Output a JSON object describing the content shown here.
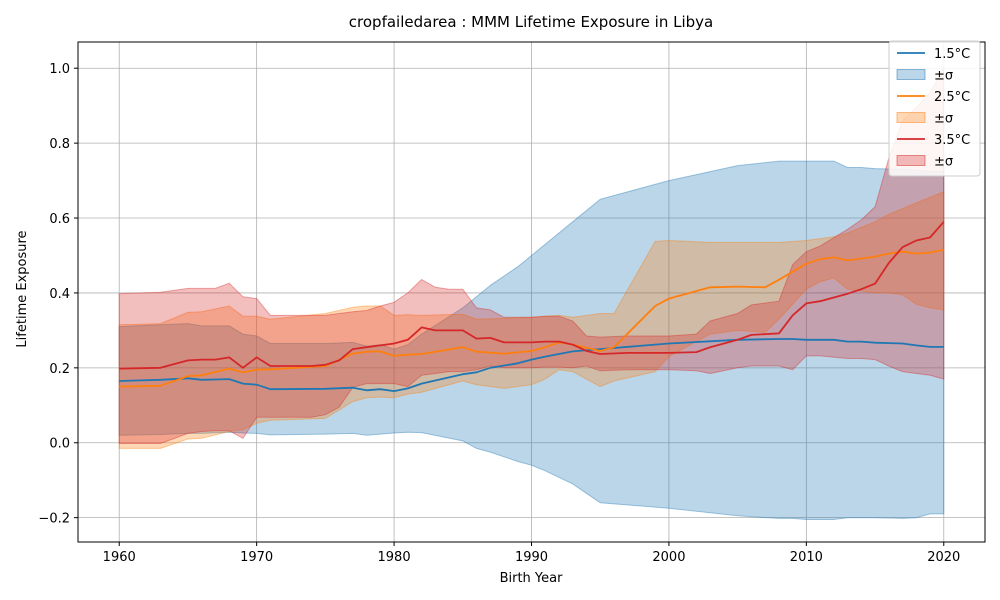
{
  "chart_data": {
    "type": "area",
    "title": "cropfailedarea : MMM Lifetime Exposure in Libya",
    "xlabel": "Birth Year",
    "ylabel": "Lifetime Exposure",
    "xlim": [
      1957,
      2023
    ],
    "ylim": [
      -0.265,
      1.07
    ],
    "xticks": [
      1960,
      1970,
      1980,
      1990,
      2000,
      2010,
      2020
    ],
    "yticks": [
      -0.2,
      0.0,
      0.2,
      0.4,
      0.6,
      0.8,
      1.0
    ],
    "ytick_labels": [
      "−0.2",
      "0.0",
      "0.2",
      "0.4",
      "0.6",
      "0.8",
      "1.0"
    ],
    "grid": true,
    "legend_position": "top-right",
    "series": [
      {
        "name": "1.5°C",
        "band_label": "±σ",
        "color": "#1f77b4",
        "band_color": "#1f77b4",
        "x": [
          1960,
          1963,
          1965,
          1966,
          1968,
          1969,
          1970,
          1971,
          1975,
          1977,
          1978,
          1979,
          1980,
          1981,
          1982,
          1985,
          1986,
          1987,
          1989,
          1990,
          1991,
          1993,
          1995,
          2000,
          2005,
          2008,
          2009,
          2010,
          2012,
          2013,
          2014,
          2015,
          2017,
          2018,
          2019,
          2020
        ],
        "mean": [
          0.165,
          0.168,
          0.172,
          0.168,
          0.17,
          0.158,
          0.155,
          0.143,
          0.144,
          0.147,
          0.14,
          0.143,
          0.138,
          0.145,
          0.158,
          0.183,
          0.188,
          0.2,
          0.212,
          0.222,
          0.23,
          0.244,
          0.25,
          0.265,
          0.275,
          0.277,
          0.277,
          0.275,
          0.275,
          0.27,
          0.27,
          0.267,
          0.265,
          0.26,
          0.256,
          0.256
        ],
        "upper": [
          0.31,
          0.315,
          0.318,
          0.312,
          0.312,
          0.29,
          0.285,
          0.265,
          0.265,
          0.268,
          0.258,
          0.262,
          0.25,
          0.262,
          0.29,
          0.36,
          0.39,
          0.42,
          0.47,
          0.5,
          0.53,
          0.59,
          0.65,
          0.7,
          0.74,
          0.752,
          0.752,
          0.752,
          0.752,
          0.735,
          0.735,
          0.732,
          0.73,
          0.728,
          0.725,
          0.725
        ],
        "lower": [
          0.02,
          0.022,
          0.025,
          0.025,
          0.028,
          0.026,
          0.025,
          0.021,
          0.023,
          0.025,
          0.02,
          0.023,
          0.026,
          0.028,
          0.027,
          0.005,
          -0.015,
          -0.025,
          -0.05,
          -0.06,
          -0.075,
          -0.11,
          -0.16,
          -0.175,
          -0.195,
          -0.202,
          -0.202,
          -0.205,
          -0.205,
          -0.2,
          -0.2,
          -0.2,
          -0.202,
          -0.2,
          -0.19,
          -0.19
        ]
      },
      {
        "name": "2.5°C",
        "band_label": "±σ",
        "color": "#ff7f0e",
        "band_color": "#ff7f0e",
        "x": [
          1960,
          1963,
          1965,
          1966,
          1968,
          1969,
          1970,
          1971,
          1975,
          1977,
          1978,
          1979,
          1980,
          1981,
          1982,
          1985,
          1986,
          1988,
          1990,
          1991,
          1992,
          1993,
          1995,
          1996,
          1999,
          2000,
          2003,
          2005,
          2007,
          2008,
          2010,
          2011,
          2012,
          2013,
          2015,
          2016,
          2017,
          2018,
          2019,
          2020
        ],
        "mean": [
          0.15,
          0.152,
          0.178,
          0.18,
          0.198,
          0.188,
          0.195,
          0.196,
          0.205,
          0.238,
          0.243,
          0.244,
          0.232,
          0.235,
          0.237,
          0.255,
          0.243,
          0.238,
          0.245,
          0.255,
          0.268,
          0.262,
          0.245,
          0.255,
          0.365,
          0.385,
          0.415,
          0.417,
          0.415,
          0.435,
          0.478,
          0.49,
          0.495,
          0.487,
          0.497,
          0.505,
          0.51,
          0.505,
          0.508,
          0.515
        ],
        "upper": [
          0.315,
          0.318,
          0.348,
          0.35,
          0.365,
          0.338,
          0.338,
          0.33,
          0.345,
          0.362,
          0.365,
          0.365,
          0.34,
          0.342,
          0.34,
          0.343,
          0.33,
          0.332,
          0.335,
          0.338,
          0.34,
          0.335,
          0.345,
          0.345,
          0.538,
          0.54,
          0.535,
          0.535,
          0.535,
          0.535,
          0.54,
          0.545,
          0.55,
          0.56,
          0.59,
          0.61,
          0.625,
          0.64,
          0.655,
          0.67
        ],
        "lower": [
          -0.015,
          -0.015,
          0.01,
          0.012,
          0.03,
          0.035,
          0.052,
          0.06,
          0.065,
          0.11,
          0.12,
          0.122,
          0.12,
          0.13,
          0.135,
          0.165,
          0.155,
          0.145,
          0.155,
          0.17,
          0.195,
          0.19,
          0.15,
          0.165,
          0.19,
          0.23,
          0.29,
          0.3,
          0.295,
          0.33,
          0.41,
          0.43,
          0.44,
          0.41,
          0.4,
          0.4,
          0.395,
          0.37,
          0.36,
          0.355
        ]
      },
      {
        "name": "3.5°C",
        "band_label": "±σ",
        "color": "#d62728",
        "band_color": "#d62728",
        "x": [
          1960,
          1963,
          1965,
          1966,
          1967,
          1968,
          1969,
          1970,
          1971,
          1974,
          1975,
          1976,
          1977,
          1978,
          1979,
          1980,
          1981,
          1982,
          1983,
          1984,
          1985,
          1986,
          1987,
          1988,
          1990,
          1991,
          1992,
          1993,
          1994,
          1995,
          1997,
          2000,
          2002,
          2003,
          2005,
          2006,
          2008,
          2009,
          2010,
          2011,
          2013,
          2014,
          2015,
          2016,
          2017,
          2018,
          2019,
          2020
        ],
        "mean": [
          0.198,
          0.2,
          0.22,
          0.222,
          0.222,
          0.228,
          0.2,
          0.228,
          0.205,
          0.205,
          0.208,
          0.22,
          0.25,
          0.255,
          0.26,
          0.265,
          0.275,
          0.308,
          0.3,
          0.3,
          0.3,
          0.278,
          0.28,
          0.268,
          0.268,
          0.27,
          0.27,
          0.262,
          0.245,
          0.237,
          0.24,
          0.24,
          0.242,
          0.255,
          0.275,
          0.288,
          0.292,
          0.34,
          0.372,
          0.378,
          0.398,
          0.41,
          0.425,
          0.48,
          0.522,
          0.54,
          0.548,
          0.59
        ],
        "upper": [
          0.398,
          0.402,
          0.412,
          0.412,
          0.412,
          0.426,
          0.39,
          0.385,
          0.34,
          0.34,
          0.34,
          0.345,
          0.35,
          0.353,
          0.365,
          0.375,
          0.4,
          0.436,
          0.415,
          0.41,
          0.41,
          0.36,
          0.355,
          0.335,
          0.335,
          0.338,
          0.338,
          0.325,
          0.285,
          0.282,
          0.285,
          0.285,
          0.29,
          0.325,
          0.345,
          0.368,
          0.378,
          0.475,
          0.51,
          0.525,
          0.57,
          0.595,
          0.63,
          0.76,
          0.86,
          0.895,
          0.935,
          1.0
        ],
        "lower": [
          -0.002,
          -0.002,
          0.025,
          0.03,
          0.032,
          0.032,
          0.012,
          0.068,
          0.068,
          0.068,
          0.075,
          0.095,
          0.148,
          0.158,
          0.158,
          0.158,
          0.15,
          0.18,
          0.185,
          0.19,
          0.19,
          0.195,
          0.205,
          0.2,
          0.2,
          0.202,
          0.202,
          0.2,
          0.205,
          0.192,
          0.195,
          0.195,
          0.192,
          0.185,
          0.2,
          0.205,
          0.205,
          0.195,
          0.232,
          0.232,
          0.225,
          0.225,
          0.222,
          0.205,
          0.19,
          0.185,
          0.18,
          0.17
        ]
      }
    ]
  }
}
